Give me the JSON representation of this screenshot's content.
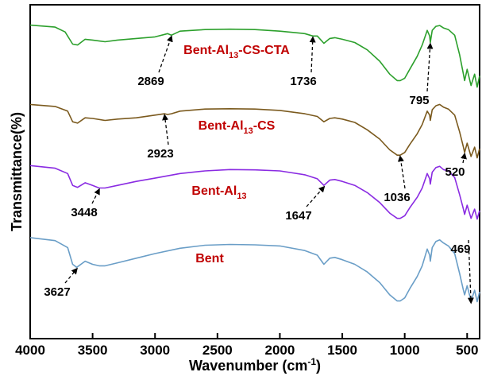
{
  "chart_data": {
    "type": "line",
    "xlabel": "Wavenumber (cm",
    "xlabel_sup": "-1",
    "xlabel_close": ")",
    "ylabel": "Transmittance(%)",
    "xlim": [
      4000,
      400
    ],
    "x_reversed": true,
    "xticks": [
      4000,
      3500,
      3000,
      2500,
      2000,
      1500,
      1000,
      500
    ],
    "grid": false,
    "legend": "none",
    "series": [
      {
        "name": "Bent-Al13-CS-CTA",
        "name_base": "Bent-Al",
        "name_sub": "13",
        "name_tail": "-CS-CTA",
        "color": "#2ca02c",
        "label_color": "#c00000",
        "points": [
          [
            4000,
            0.965
          ],
          [
            3800,
            0.94
          ],
          [
            3720,
            0.88
          ],
          [
            3660,
            0.73
          ],
          [
            3620,
            0.72
          ],
          [
            3560,
            0.79
          ],
          [
            3500,
            0.78
          ],
          [
            3400,
            0.76
          ],
          [
            3300,
            0.78
          ],
          [
            3150,
            0.8
          ],
          [
            3000,
            0.82
          ],
          [
            2923,
            0.85
          ],
          [
            2900,
            0.86
          ],
          [
            2869,
            0.84
          ],
          [
            2800,
            0.89
          ],
          [
            2600,
            0.91
          ],
          [
            2400,
            0.915
          ],
          [
            2200,
            0.91
          ],
          [
            2000,
            0.89
          ],
          [
            1800,
            0.86
          ],
          [
            1736,
            0.83
          ],
          [
            1700,
            0.83
          ],
          [
            1647,
            0.74
          ],
          [
            1600,
            0.8
          ],
          [
            1560,
            0.81
          ],
          [
            1500,
            0.79
          ],
          [
            1400,
            0.75
          ],
          [
            1300,
            0.66
          ],
          [
            1200,
            0.52
          ],
          [
            1120,
            0.36
          ],
          [
            1060,
            0.28
          ],
          [
            1036,
            0.28
          ],
          [
            1000,
            0.31
          ],
          [
            960,
            0.42
          ],
          [
            900,
            0.58
          ],
          [
            860,
            0.72
          ],
          [
            820,
            0.9
          ],
          [
            800,
            0.83
          ],
          [
            795,
            0.75
          ],
          [
            780,
            0.9
          ],
          [
            750,
            0.95
          ],
          [
            720,
            0.96
          ],
          [
            690,
            0.93
          ],
          [
            650,
            0.91
          ],
          [
            600,
            0.84
          ],
          [
            560,
            0.6
          ],
          [
            530,
            0.36
          ],
          [
            520,
            0.28
          ],
          [
            500,
            0.42
          ],
          [
            469,
            0.22
          ],
          [
            440,
            0.36
          ],
          [
            420,
            0.2
          ],
          [
            400,
            0.34
          ]
        ]
      },
      {
        "name": "Bent-Al13-CS",
        "name_base": "Bent-Al",
        "name_sub": "13",
        "name_tail": "-CS",
        "color": "#7b5a1e",
        "label_color": "#c00000",
        "points": [
          [
            4000,
            0.96
          ],
          [
            3800,
            0.93
          ],
          [
            3700,
            0.86
          ],
          [
            3660,
            0.7
          ],
          [
            3620,
            0.68
          ],
          [
            3560,
            0.76
          ],
          [
            3500,
            0.75
          ],
          [
            3400,
            0.72
          ],
          [
            3300,
            0.74
          ],
          [
            3150,
            0.76
          ],
          [
            3000,
            0.8
          ],
          [
            2923,
            0.82
          ],
          [
            2900,
            0.81
          ],
          [
            2869,
            0.82
          ],
          [
            2800,
            0.86
          ],
          [
            2600,
            0.89
          ],
          [
            2400,
            0.895
          ],
          [
            2200,
            0.89
          ],
          [
            2000,
            0.87
          ],
          [
            1800,
            0.82
          ],
          [
            1700,
            0.78
          ],
          [
            1647,
            0.7
          ],
          [
            1600,
            0.75
          ],
          [
            1560,
            0.76
          ],
          [
            1500,
            0.74
          ],
          [
            1400,
            0.69
          ],
          [
            1300,
            0.58
          ],
          [
            1200,
            0.44
          ],
          [
            1120,
            0.28
          ],
          [
            1060,
            0.2
          ],
          [
            1036,
            0.2
          ],
          [
            1000,
            0.24
          ],
          [
            960,
            0.36
          ],
          [
            900,
            0.52
          ],
          [
            860,
            0.66
          ],
          [
            820,
            0.86
          ],
          [
            800,
            0.8
          ],
          [
            795,
            0.72
          ],
          [
            780,
            0.88
          ],
          [
            750,
            0.94
          ],
          [
            720,
            0.96
          ],
          [
            690,
            0.92
          ],
          [
            650,
            0.89
          ],
          [
            600,
            0.8
          ],
          [
            560,
            0.55
          ],
          [
            530,
            0.32
          ],
          [
            520,
            0.24
          ],
          [
            500,
            0.38
          ],
          [
            469,
            0.18
          ],
          [
            440,
            0.32
          ],
          [
            420,
            0.16
          ],
          [
            400,
            0.3
          ]
        ]
      },
      {
        "name": "Bent-Al13",
        "name_base": "Bent-Al",
        "name_sub": "13",
        "name_tail": "",
        "color": "#8a2be2",
        "label_color": "#c00000",
        "points": [
          [
            4000,
            0.96
          ],
          [
            3800,
            0.92
          ],
          [
            3700,
            0.84
          ],
          [
            3660,
            0.66
          ],
          [
            3620,
            0.63
          ],
          [
            3560,
            0.7
          ],
          [
            3500,
            0.66
          ],
          [
            3448,
            0.62
          ],
          [
            3400,
            0.62
          ],
          [
            3300,
            0.66
          ],
          [
            3150,
            0.72
          ],
          [
            3000,
            0.77
          ],
          [
            2800,
            0.84
          ],
          [
            2600,
            0.88
          ],
          [
            2400,
            0.9
          ],
          [
            2200,
            0.895
          ],
          [
            2000,
            0.88
          ],
          [
            1800,
            0.82
          ],
          [
            1700,
            0.76
          ],
          [
            1647,
            0.66
          ],
          [
            1600,
            0.74
          ],
          [
            1560,
            0.75
          ],
          [
            1500,
            0.72
          ],
          [
            1400,
            0.66
          ],
          [
            1300,
            0.55
          ],
          [
            1200,
            0.4
          ],
          [
            1120,
            0.24
          ],
          [
            1060,
            0.16
          ],
          [
            1036,
            0.16
          ],
          [
            1000,
            0.2
          ],
          [
            960,
            0.32
          ],
          [
            900,
            0.48
          ],
          [
            860,
            0.62
          ],
          [
            820,
            0.84
          ],
          [
            800,
            0.76
          ],
          [
            795,
            0.68
          ],
          [
            780,
            0.86
          ],
          [
            750,
            0.93
          ],
          [
            720,
            0.95
          ],
          [
            690,
            0.9
          ],
          [
            650,
            0.88
          ],
          [
            600,
            0.78
          ],
          [
            560,
            0.52
          ],
          [
            530,
            0.3
          ],
          [
            520,
            0.22
          ],
          [
            500,
            0.36
          ],
          [
            469,
            0.16
          ],
          [
            440,
            0.3
          ],
          [
            420,
            0.15
          ],
          [
            400,
            0.28
          ]
        ]
      },
      {
        "name": "Bent",
        "name_base": "Bent",
        "name_sub": "",
        "name_tail": "",
        "color": "#6a9ec7",
        "label_color": "#c00000",
        "points": [
          [
            4000,
            0.97
          ],
          [
            3800,
            0.93
          ],
          [
            3700,
            0.84
          ],
          [
            3660,
            0.62
          ],
          [
            3627,
            0.58
          ],
          [
            3560,
            0.66
          ],
          [
            3500,
            0.62
          ],
          [
            3448,
            0.6
          ],
          [
            3400,
            0.6
          ],
          [
            3300,
            0.64
          ],
          [
            3150,
            0.7
          ],
          [
            3000,
            0.76
          ],
          [
            2800,
            0.83
          ],
          [
            2600,
            0.87
          ],
          [
            2400,
            0.88
          ],
          [
            2200,
            0.875
          ],
          [
            2000,
            0.86
          ],
          [
            1800,
            0.8
          ],
          [
            1700,
            0.74
          ],
          [
            1647,
            0.62
          ],
          [
            1600,
            0.7
          ],
          [
            1560,
            0.71
          ],
          [
            1500,
            0.68
          ],
          [
            1400,
            0.62
          ],
          [
            1300,
            0.52
          ],
          [
            1200,
            0.38
          ],
          [
            1120,
            0.22
          ],
          [
            1060,
            0.14
          ],
          [
            1036,
            0.14
          ],
          [
            1000,
            0.18
          ],
          [
            960,
            0.3
          ],
          [
            900,
            0.46
          ],
          [
            860,
            0.6
          ],
          [
            820,
            0.82
          ],
          [
            800,
            0.74
          ],
          [
            795,
            0.66
          ],
          [
            780,
            0.84
          ],
          [
            750,
            0.92
          ],
          [
            720,
            0.94
          ],
          [
            690,
            0.9
          ],
          [
            650,
            0.86
          ],
          [
            600,
            0.76
          ],
          [
            560,
            0.5
          ],
          [
            530,
            0.28
          ],
          [
            520,
            0.22
          ],
          [
            500,
            0.34
          ],
          [
            469,
            0.14
          ],
          [
            440,
            0.28
          ],
          [
            420,
            0.13
          ],
          [
            400,
            0.26
          ]
        ]
      }
    ],
    "annotations": [
      {
        "label": "2869",
        "wavenumber": 2869,
        "series": 0
      },
      {
        "label": "1736",
        "wavenumber": 1736,
        "series": 0
      },
      {
        "label": "795",
        "wavenumber": 795,
        "series": 0
      },
      {
        "label": "2923",
        "wavenumber": 2923,
        "series": 1
      },
      {
        "label": "1036",
        "wavenumber": 1036,
        "series": 1
      },
      {
        "label": "520",
        "wavenumber": 520,
        "series": 1
      },
      {
        "label": "1647",
        "wavenumber": 1647,
        "series": 2
      },
      {
        "label": "3448",
        "wavenumber": 3448,
        "series": 2
      },
      {
        "label": "3627",
        "wavenumber": 3627,
        "series": 3
      },
      {
        "label": "469",
        "wavenumber": 469,
        "series": 3
      }
    ]
  }
}
